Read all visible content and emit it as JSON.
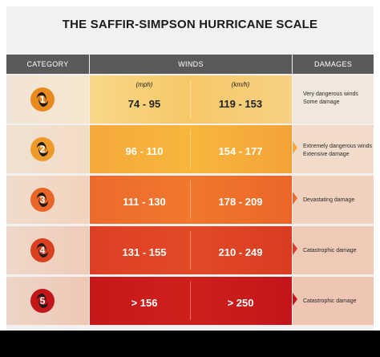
{
  "title": "THE SAFFIR-SIMPSON HURRICANE SCALE",
  "headers": {
    "category": "CATEGORY",
    "winds": "WINDS",
    "damages": "DAMAGES"
  },
  "units": {
    "mph": "(mph)",
    "kmh": "(km/h)"
  },
  "colors": {
    "header_bg": "#5a5a5a",
    "cat1": "#f5c46a",
    "cat2": "#f4a93a",
    "cat3": "#ee6a2c",
    "cat4": "#de3f24",
    "cat5": "#c7171a"
  },
  "rows": [
    {
      "num": "1",
      "mph": "74 - 95",
      "kmh": "119 - 153",
      "damage_line1": "Very dangerous winds",
      "damage_line2": "Some damage"
    },
    {
      "num": "2",
      "mph": "96 - 110",
      "kmh": "154 - 177",
      "damage_line1": "Extremely dangerous winds",
      "damage_line2": "Extensive damage"
    },
    {
      "num": "3",
      "mph": "111 - 130",
      "kmh": "178 - 209",
      "damage_line1": "Devastating damage",
      "damage_line2": ""
    },
    {
      "num": "4",
      "mph": "131 - 155",
      "kmh": "210 - 249",
      "damage_line1": "Catastrophic damage",
      "damage_line2": ""
    },
    {
      "num": "5",
      "mph": "> 156",
      "kmh": "> 250",
      "damage_line1": "Catastrophic damage",
      "damage_line2": ""
    }
  ]
}
